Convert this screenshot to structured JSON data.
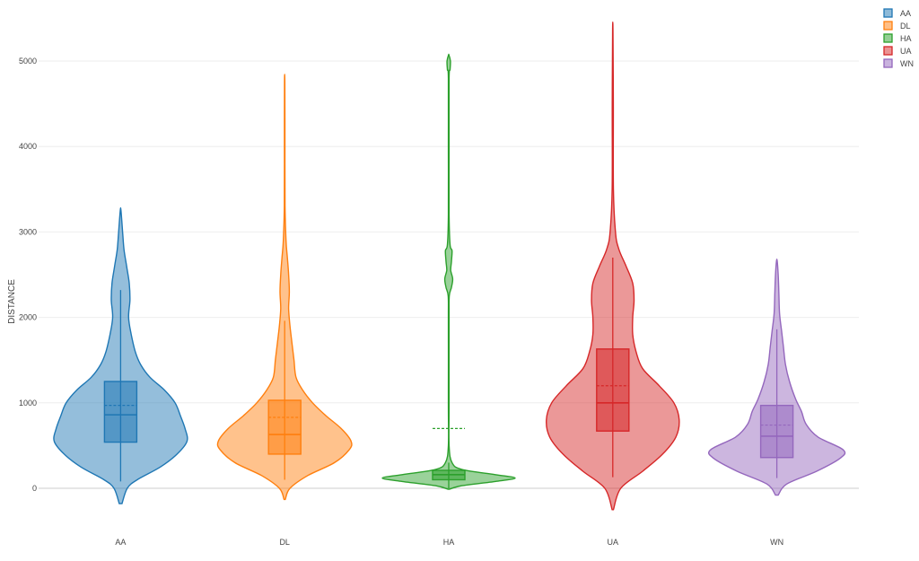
{
  "chart_data": {
    "type": "violin",
    "ylabel": "DISTANCE",
    "ylim": [
      -250,
      5450
    ],
    "yticks": [
      0,
      1000,
      2000,
      3000,
      4000,
      5000
    ],
    "grid": true,
    "legend_position": "top-right",
    "series": [
      {
        "name": "AA",
        "color": "#1f77b4",
        "min": 80,
        "q1": 540,
        "median": 860,
        "mean": 970,
        "q3": 1250,
        "max": 2320,
        "kde_min": -180,
        "kde_max": 3250,
        "density": [
          [
            -180,
            0.02
          ],
          [
            0,
            0.1
          ],
          [
            100,
            0.25
          ],
          [
            250,
            0.6
          ],
          [
            400,
            0.85
          ],
          [
            550,
            1.0
          ],
          [
            700,
            0.97
          ],
          [
            850,
            0.9
          ],
          [
            1000,
            0.82
          ],
          [
            1150,
            0.66
          ],
          [
            1300,
            0.44
          ],
          [
            1450,
            0.3
          ],
          [
            1600,
            0.22
          ],
          [
            1800,
            0.16
          ],
          [
            2000,
            0.12
          ],
          [
            2200,
            0.14
          ],
          [
            2400,
            0.13
          ],
          [
            2600,
            0.09
          ],
          [
            2800,
            0.05
          ],
          [
            3000,
            0.03
          ],
          [
            3250,
            0.005
          ]
        ]
      },
      {
        "name": "DL",
        "color": "#ff7f0e",
        "min": 100,
        "q1": 400,
        "median": 630,
        "mean": 830,
        "q3": 1030,
        "max": 1960,
        "kde_min": -130,
        "kde_max": 4750,
        "density": [
          [
            -130,
            0.01
          ],
          [
            0,
            0.08
          ],
          [
            150,
            0.35
          ],
          [
            300,
            0.75
          ],
          [
            450,
            0.97
          ],
          [
            550,
            1.0
          ],
          [
            700,
            0.85
          ],
          [
            850,
            0.62
          ],
          [
            1000,
            0.42
          ],
          [
            1150,
            0.27
          ],
          [
            1300,
            0.17
          ],
          [
            1500,
            0.14
          ],
          [
            1700,
            0.11
          ],
          [
            1900,
            0.08
          ],
          [
            2100,
            0.06
          ],
          [
            2300,
            0.07
          ],
          [
            2500,
            0.06
          ],
          [
            2700,
            0.04
          ],
          [
            2900,
            0.02
          ],
          [
            3300,
            0.006
          ],
          [
            4000,
            0.004
          ],
          [
            4750,
            0.003
          ]
        ]
      },
      {
        "name": "HA",
        "color": "#2ca02c",
        "min": 0,
        "q1": 100,
        "median": 160,
        "mean": 700,
        "q3": 210,
        "max": 300,
        "kde_min": -10,
        "kde_max": 5070,
        "density": [
          [
            -10,
            0.01
          ],
          [
            30,
            0.2
          ],
          [
            80,
            0.7
          ],
          [
            120,
            1.0
          ],
          [
            160,
            0.7
          ],
          [
            220,
            0.2
          ],
          [
            300,
            0.05
          ],
          [
            500,
            0.006
          ],
          [
            1000,
            0.005
          ],
          [
            2000,
            0.005
          ],
          [
            2250,
            0.008
          ],
          [
            2350,
            0.04
          ],
          [
            2450,
            0.06
          ],
          [
            2550,
            0.03
          ],
          [
            2650,
            0.04
          ],
          [
            2780,
            0.05
          ],
          [
            2850,
            0.02
          ],
          [
            3200,
            0.005
          ],
          [
            4000,
            0.005
          ],
          [
            4800,
            0.006
          ],
          [
            4900,
            0.02
          ],
          [
            5000,
            0.025
          ],
          [
            5070,
            0.003
          ]
        ]
      },
      {
        "name": "UA",
        "color": "#d62728",
        "min": 130,
        "q1": 670,
        "median": 1000,
        "mean": 1200,
        "q3": 1630,
        "max": 2700,
        "kde_min": -250,
        "kde_max": 5350,
        "density": [
          [
            -250,
            0.01
          ],
          [
            0,
            0.12
          ],
          [
            200,
            0.45
          ],
          [
            400,
            0.75
          ],
          [
            600,
            0.95
          ],
          [
            800,
            1.0
          ],
          [
            1000,
            0.92
          ],
          [
            1200,
            0.7
          ],
          [
            1400,
            0.45
          ],
          [
            1600,
            0.35
          ],
          [
            1800,
            0.3
          ],
          [
            2000,
            0.3
          ],
          [
            2200,
            0.32
          ],
          [
            2400,
            0.3
          ],
          [
            2600,
            0.2
          ],
          [
            2800,
            0.09
          ],
          [
            3000,
            0.04
          ],
          [
            3500,
            0.01
          ],
          [
            4500,
            0.008
          ],
          [
            5350,
            0.003
          ]
        ]
      },
      {
        "name": "WN",
        "color": "#9467bd",
        "min": 120,
        "q1": 360,
        "median": 610,
        "mean": 740,
        "q3": 970,
        "max": 1860,
        "kde_min": -80,
        "kde_max": 2660,
        "density": [
          [
            -80,
            0.02
          ],
          [
            50,
            0.15
          ],
          [
            200,
            0.6
          ],
          [
            350,
            0.95
          ],
          [
            450,
            1.0
          ],
          [
            600,
            0.62
          ],
          [
            750,
            0.44
          ],
          [
            900,
            0.37
          ],
          [
            1050,
            0.28
          ],
          [
            1250,
            0.19
          ],
          [
            1450,
            0.13
          ],
          [
            1650,
            0.1
          ],
          [
            1850,
            0.07
          ],
          [
            2050,
            0.04
          ],
          [
            2300,
            0.03
          ],
          [
            2500,
            0.02
          ],
          [
            2660,
            0.005
          ]
        ]
      }
    ]
  }
}
